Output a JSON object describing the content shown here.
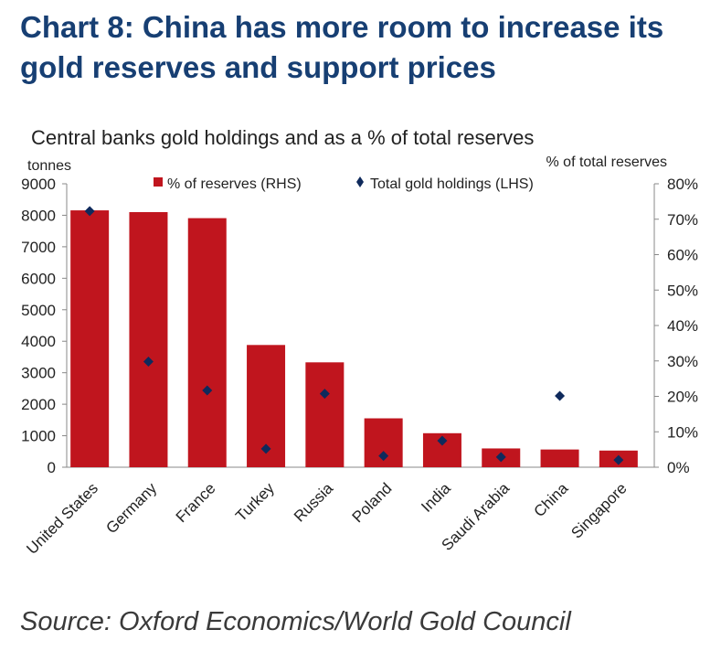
{
  "header": {
    "title_line1": "Chart 8: China has more room to increase its",
    "title_line2": "gold reserves and support prices"
  },
  "source": "Source: Oxford Economics/World Gold Council",
  "colors": {
    "title": "#173f73",
    "bar": "#c0151e",
    "marker": "#0f2a5c",
    "axis": "#888888"
  },
  "chart_data": {
    "type": "bar",
    "title": "Central banks gold holdings and as a % of total reserves",
    "ylabel_left": "tonnes",
    "ylabel_right": "% of total reserves",
    "categories": [
      "United States",
      "Germany",
      "France",
      "Turkey",
      "Russia",
      "Poland",
      "India",
      "Saudi Arabia",
      "China",
      "Singapore"
    ],
    "series": [
      {
        "name": "% of reserves (RHS)",
        "kind": "bar",
        "axis": "right",
        "values": [
          72.5,
          72.0,
          70.3,
          34.5,
          29.6,
          13.8,
          9.6,
          5.3,
          5.0,
          4.7
        ]
      },
      {
        "name": "Total gold holdings (LHS)",
        "kind": "marker",
        "axis": "left",
        "values": [
          8133,
          3352,
          2437,
          584,
          2335,
          359,
          841,
          323,
          2264,
          227
        ]
      }
    ],
    "ylim_left": [
      0,
      9000
    ],
    "yticks_left": [
      "0",
      "1000",
      "2000",
      "3000",
      "4000",
      "5000",
      "6000",
      "7000",
      "8000",
      "9000"
    ],
    "ylim_right": [
      0,
      80
    ],
    "yticks_right": [
      "0%",
      "10%",
      "20%",
      "30%",
      "40%",
      "50%",
      "60%",
      "70%",
      "80%"
    ],
    "legend_placement": "top",
    "grid": false
  }
}
